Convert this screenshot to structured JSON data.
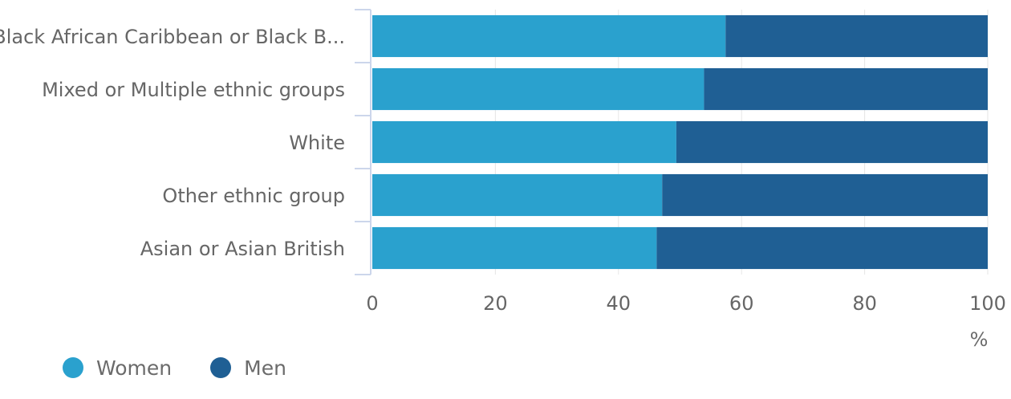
{
  "chart_data": {
    "type": "bar",
    "orientation": "horizontal",
    "stacked": true,
    "categories": [
      "Black African Caribbean or Black B...",
      "Mixed or Multiple ethnic groups",
      "White",
      "Other ethnic group",
      "Asian or Asian British"
    ],
    "series": [
      {
        "name": "Women",
        "color": "#2aa1ce",
        "values": [
          57.4,
          53.9,
          49.4,
          47.1,
          46.2
        ]
      },
      {
        "name": "Men",
        "color": "#1f5f94",
        "values": [
          42.6,
          46.1,
          50.6,
          52.9,
          53.8
        ]
      }
    ],
    "xlim": [
      0,
      100
    ],
    "xticks": [
      0,
      20,
      40,
      60,
      80,
      100
    ],
    "xunit": "%",
    "title": "",
    "xlabel": "",
    "ylabel": "",
    "grid": true,
    "legend_position": "bottom-left"
  }
}
